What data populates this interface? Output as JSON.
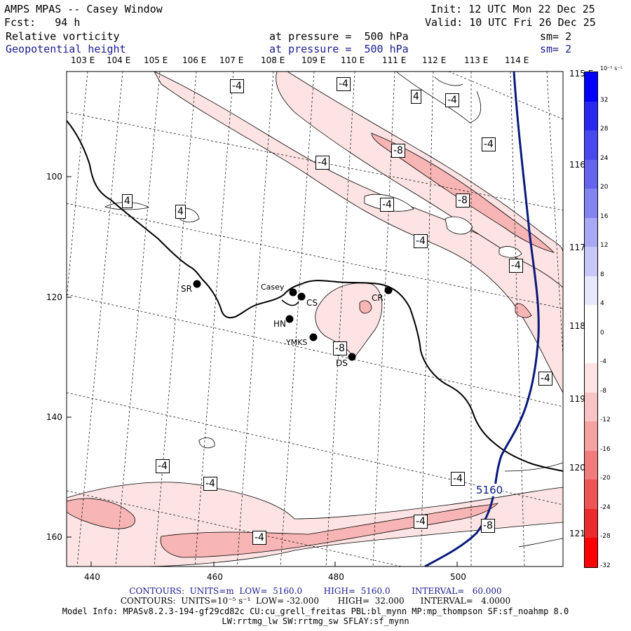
{
  "header": {
    "title": "AMPS MPAS -- Casey Window",
    "init": "Init: 12 UTC Mon 22 Dec 25",
    "fcst": "Fcst:   94 h",
    "valid": "Valid: 10 UTC Fri 26 Dec 25",
    "field1_name": "Relative vorticity",
    "field1_level": "at pressure =  500 hPa",
    "field1_sm": "sm= 2",
    "field2_name": "Geopotential height",
    "field2_level": "at pressure =  500 hPa",
    "field2_sm": "sm= 2"
  },
  "map": {
    "lon_top_labels": [
      "103 E",
      "104 E",
      "105 E",
      "106 E",
      "107 E",
      "108 E",
      "109 E",
      "110 E",
      "111 E",
      "112 E",
      "113 E",
      "114 E"
    ],
    "lon_right_labels": [
      "115 E",
      "116 E",
      "117 E",
      "118 E",
      "119 E",
      "120 E",
      "121 E"
    ],
    "y_axis_ticks": [
      "100",
      "120",
      "140",
      "160"
    ],
    "x_axis_ticks": [
      "440",
      "460",
      "480",
      "500"
    ],
    "stations": [
      {
        "name": "SR"
      },
      {
        "name": "Casey"
      },
      {
        "name": "CS"
      },
      {
        "name": "HN"
      },
      {
        "name": "CR"
      },
      {
        "name": "YMKS"
      },
      {
        "name": "DS"
      }
    ],
    "contour_labels": [
      "-4",
      "-4",
      "4",
      "-4",
      "-4",
      "-8",
      "-4",
      "4",
      "4",
      "-4",
      "-8",
      "-4",
      "-4",
      "-4",
      "-8",
      "-4",
      "-4",
      "-4",
      "-8",
      "-4",
      "-4",
      "-4"
    ],
    "height_contour_label": "5160",
    "colors": {
      "height_contour": "#0a1a7a",
      "coastline": "#000000",
      "vort_light": "#fde3e3",
      "vort_mid": "#f7b5b5"
    }
  },
  "colorbar": {
    "unit": "10⁻⁵ s⁻¹",
    "ticks": [
      "32",
      "28",
      "24",
      "20",
      "16",
      "12",
      "8",
      "4",
      "0",
      "-4",
      "-8",
      "-12",
      "-16",
      "-20",
      "-24",
      "-28",
      "-32"
    ],
    "colors": [
      "#0000ff",
      "#2828f0",
      "#4848ee",
      "#6464ee",
      "#8484f0",
      "#a8a8f4",
      "#c8c8f8",
      "#e8e8fc",
      "#ffffff",
      "#ffffff",
      "#fde3e3",
      "#fac4c4",
      "#f6a2a2",
      "#f27c7c",
      "#ee5454",
      "#ea2c2c",
      "#ff0000"
    ]
  },
  "footer": {
    "contours1_a": "CONTOURS:  UNITS=m  LOW=  5160.0",
    "contours1_b": "HIGH=  5160.0",
    "contours1_c": "INTERVAL=   60.000",
    "contours2": "CONTOURS:  UNITS=10⁻⁵ s⁻¹  LOW= -32.000       HIGH=  32.000      INTERVAL=   4.0000",
    "model_info": "Model Info: MPASv8.2.3-194-gf29cd82c CU:cu_grell_freitas PBL:bl_mynn MP:mp_thompson SF:sf_noahmp 8.0",
    "model_info2": "LW:rrtmg_lw SW:rrtmg_sw SFLAY:sf_mynn"
  }
}
